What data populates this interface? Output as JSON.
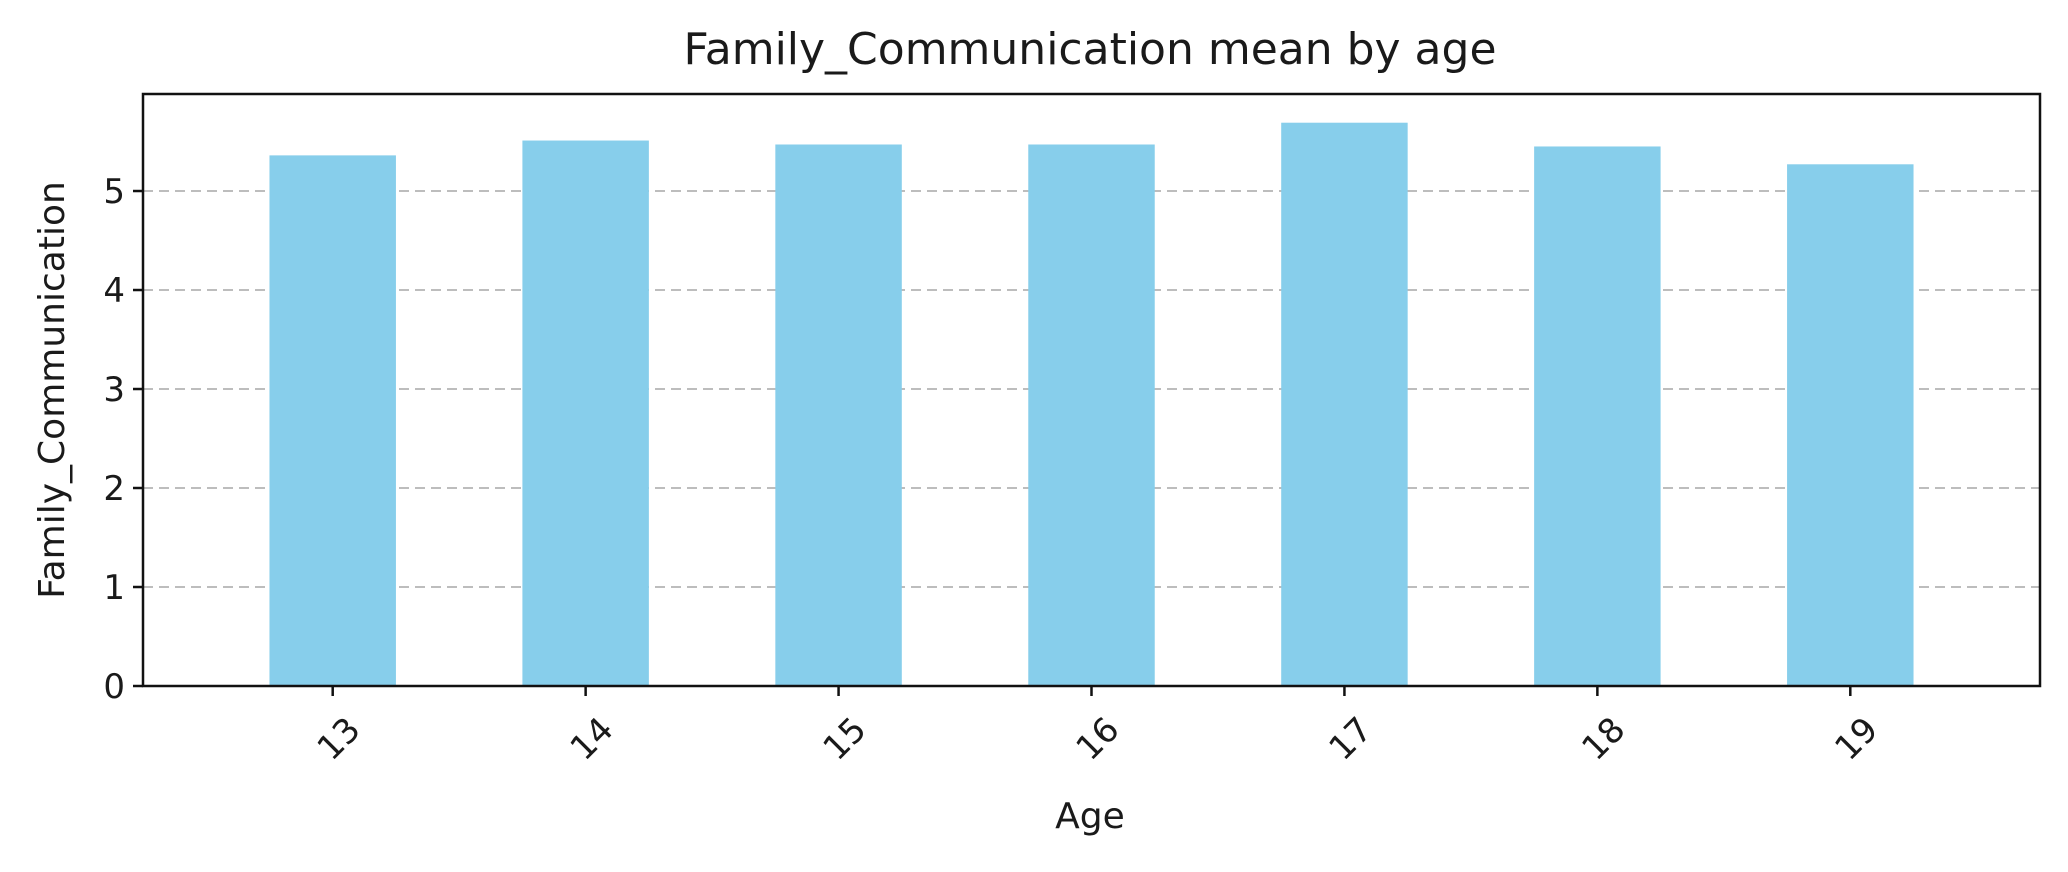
{
  "chart_data": {
    "type": "bar",
    "title": "Family_Communication mean by age",
    "xlabel": "Age",
    "ylabel": "Family_Communication",
    "categories": [
      "13",
      "14",
      "15",
      "16",
      "17",
      "18",
      "19"
    ],
    "values": [
      5.36,
      5.51,
      5.47,
      5.47,
      5.69,
      5.45,
      5.27
    ],
    "ylim": [
      0,
      5.98
    ],
    "yticks": [
      0,
      1,
      2,
      3,
      4,
      5
    ],
    "x_tick_rotation_deg": -45,
    "grid": {
      "axis": "y",
      "style": "dashed",
      "color": "#bdbdbd"
    },
    "legend": "none",
    "bar_color": "#87ceeb"
  }
}
